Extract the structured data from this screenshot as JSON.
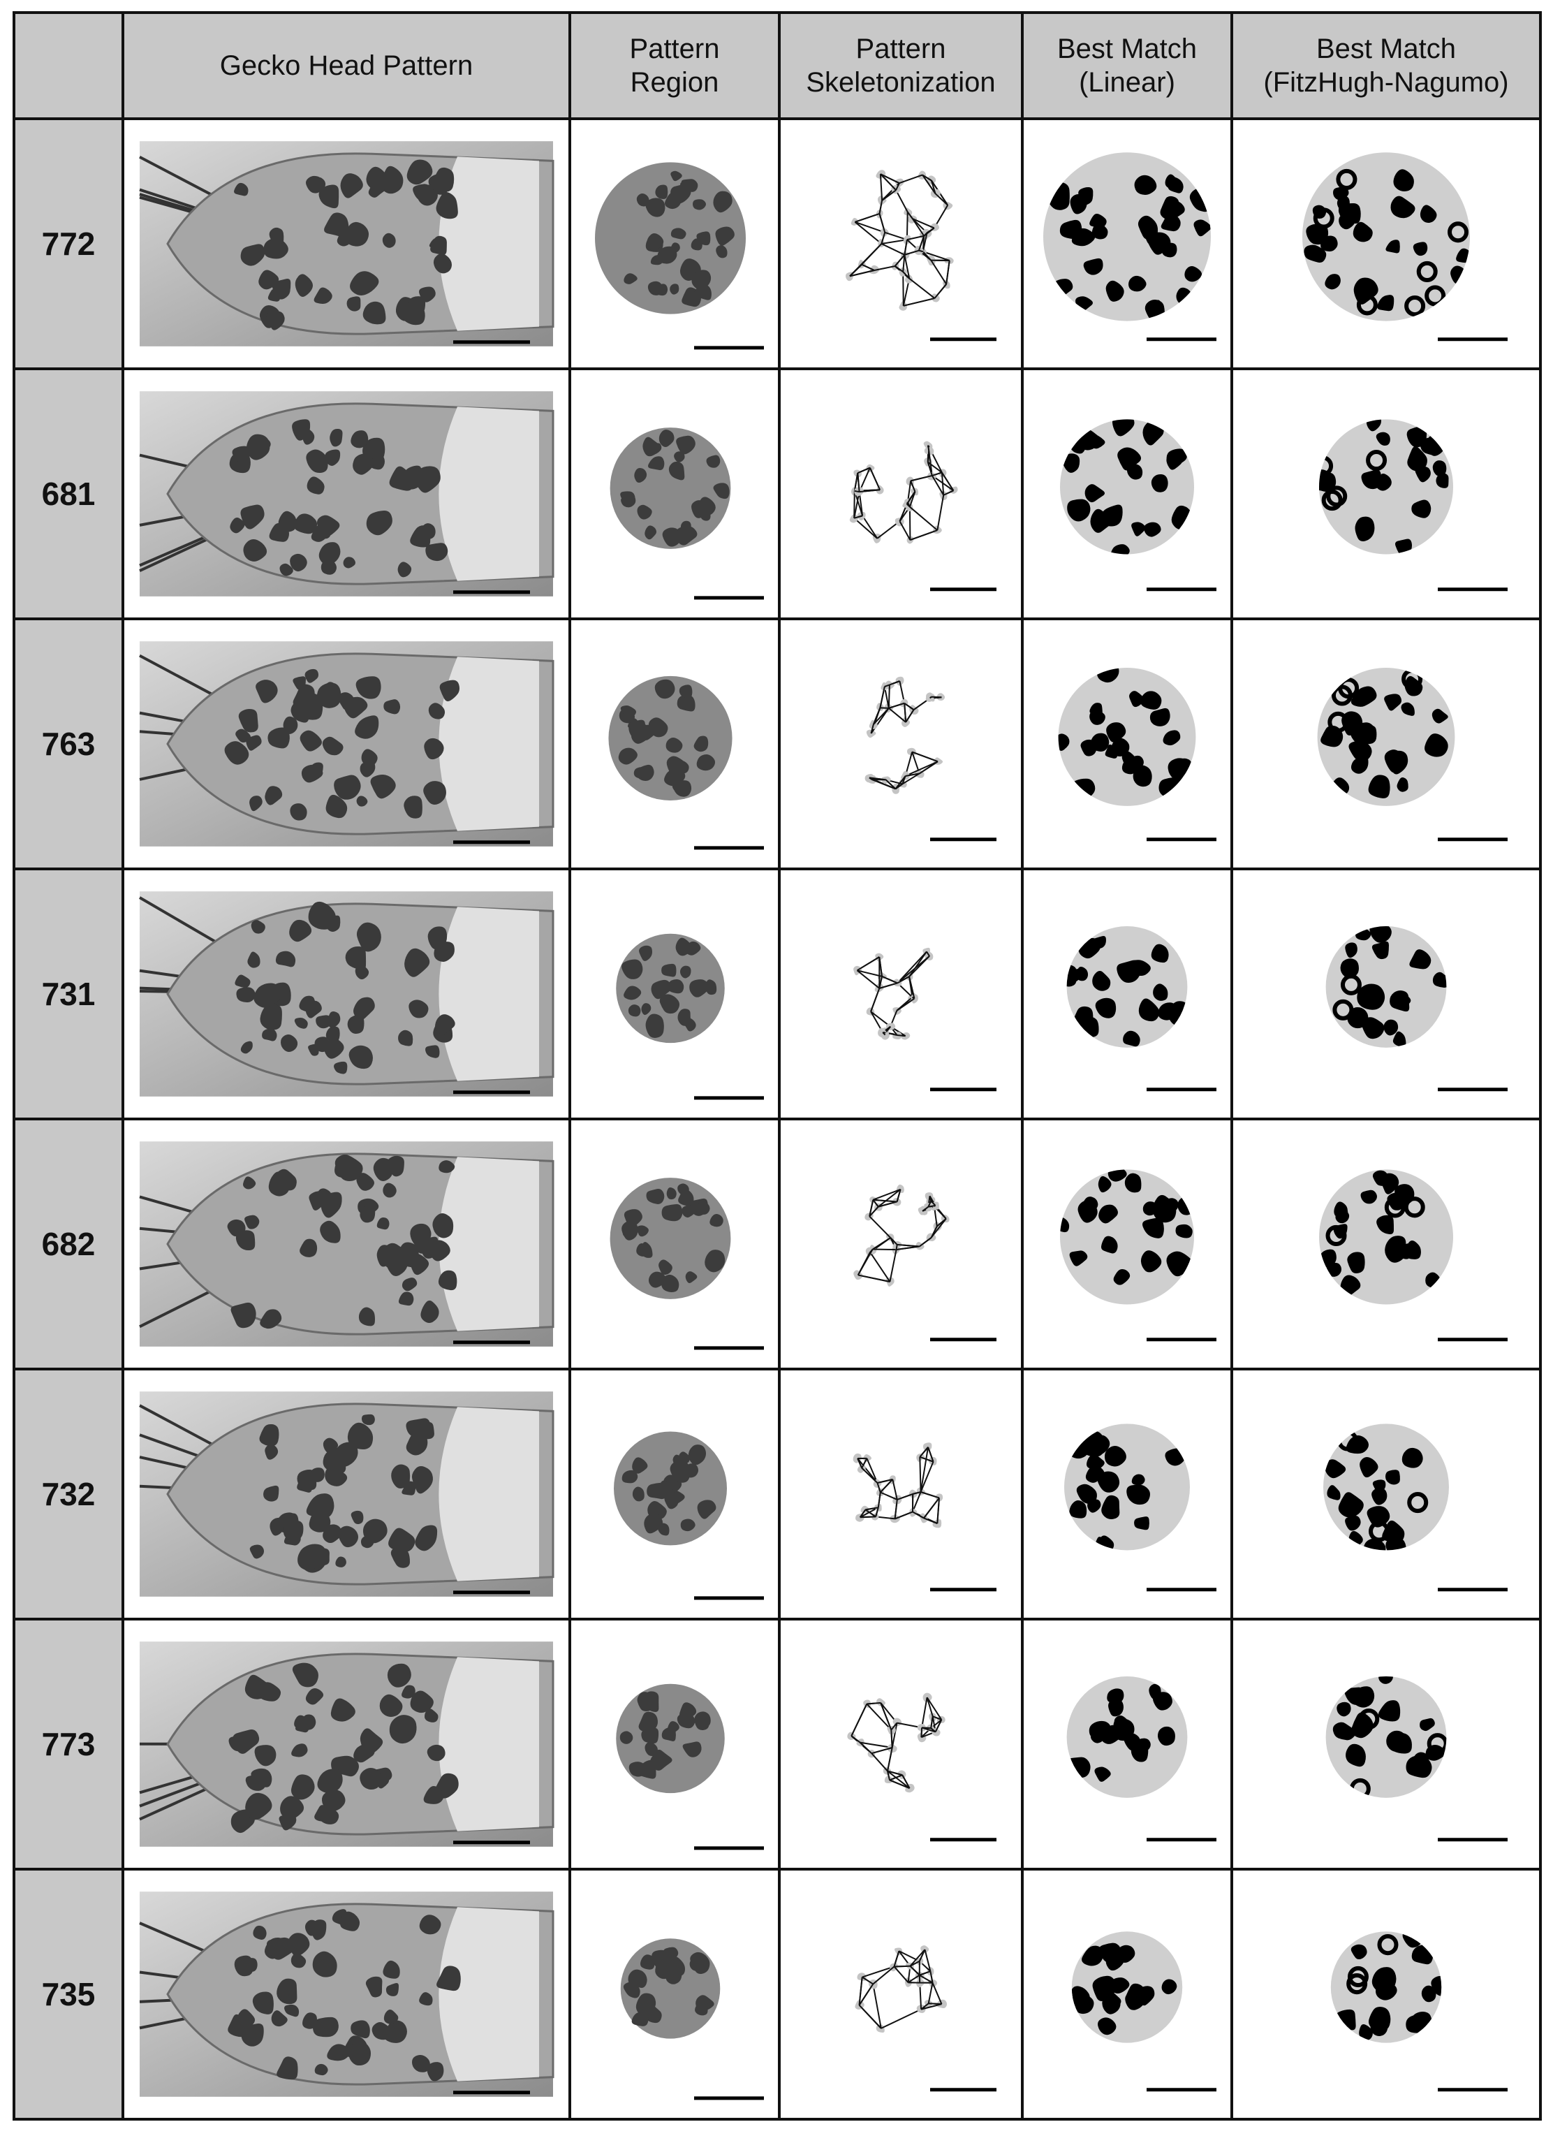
{
  "table": {
    "headers": [
      "",
      "Gecko Head Pattern",
      "Pattern\nRegion",
      "Pattern\nSkeletonization",
      "Best Match\n(Linear)",
      "Best Match\n(FitzHugh-Nagumo)"
    ],
    "rows": [
      {
        "id": "772"
      },
      {
        "id": "681"
      },
      {
        "id": "763"
      },
      {
        "id": "731"
      },
      {
        "id": "682"
      },
      {
        "id": "732"
      },
      {
        "id": "773"
      },
      {
        "id": "735"
      }
    ]
  },
  "colors": {
    "header_bg": "#c8c8c8",
    "border": "#111111",
    "spot": "#000000",
    "pattern_bg": "#cfcfcf",
    "photo_bg": "#9a9a9a"
  }
}
